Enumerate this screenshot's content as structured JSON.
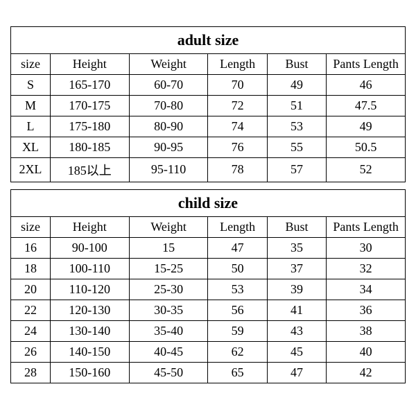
{
  "adult": {
    "title": "adult size",
    "columns": [
      "size",
      "Height",
      "Weight",
      "Length",
      "Bust",
      "Pants Length"
    ],
    "rows": [
      [
        "S",
        "165-170",
        "60-70",
        "70",
        "49",
        "46"
      ],
      [
        "M",
        "170-175",
        "70-80",
        "72",
        "51",
        "47.5"
      ],
      [
        "L",
        "175-180",
        "80-90",
        "74",
        "53",
        "49"
      ],
      [
        "XL",
        "180-185",
        "90-95",
        "76",
        "55",
        "50.5"
      ],
      [
        "2XL",
        "185以上",
        "95-110",
        "78",
        "57",
        "52"
      ]
    ]
  },
  "child": {
    "title": "child size",
    "columns": [
      "size",
      "Height",
      "Weight",
      "Length",
      "Bust",
      "Pants Length"
    ],
    "rows": [
      [
        "16",
        "90-100",
        "15",
        "47",
        "35",
        "30"
      ],
      [
        "18",
        "100-110",
        "15-25",
        "50",
        "37",
        "32"
      ],
      [
        "20",
        "110-120",
        "25-30",
        "53",
        "39",
        "34"
      ],
      [
        "22",
        "120-130",
        "30-35",
        "56",
        "41",
        "36"
      ],
      [
        "24",
        "130-140",
        "35-40",
        "59",
        "43",
        "38"
      ],
      [
        "26",
        "140-150",
        "40-45",
        "62",
        "45",
        "40"
      ],
      [
        "28",
        "150-160",
        "45-50",
        "65",
        "47",
        "42"
      ]
    ]
  },
  "colors": {
    "border": "#000000",
    "background": "#ffffff",
    "text": "#000000"
  }
}
